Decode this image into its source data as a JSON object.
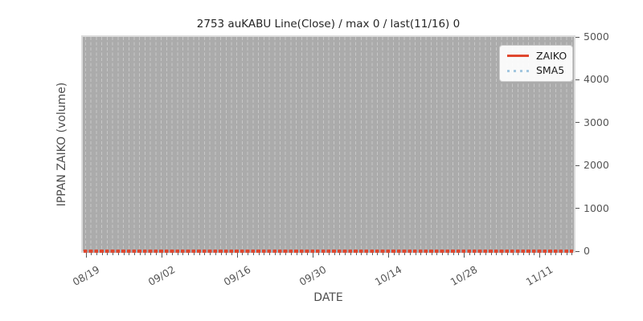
{
  "chart_data": {
    "type": "line",
    "title": "2753 auKABU Line(Close) / max 0 / last(11/16) 0",
    "xlabel": "DATE",
    "ylabel": "IPPAN ZAIKO (volume)",
    "x_tick_labels": [
      "08/19",
      "09/02",
      "09/16",
      "09/30",
      "10/14",
      "10/28",
      "11/11"
    ],
    "x_major_tick_interval_days": 14,
    "x_minor_tick_interval_days": 1,
    "y_tick_labels": [
      "0",
      "1000",
      "2000",
      "3000",
      "4000",
      "5000"
    ],
    "ylim": [
      0,
      5000
    ],
    "y_ticks_side": "right",
    "grid": "vertical-dashed-daily",
    "legend_position": "upper-right",
    "series": [
      {
        "name": "ZAIKO",
        "color": "#e0472e",
        "line_style": "solid",
        "constant_value": 0
      },
      {
        "name": "SMA5",
        "color": "#a3c7e0",
        "line_style": "dotted",
        "constant_value": 0
      }
    ],
    "stats": {
      "max": 0,
      "last_date": "11/16",
      "last_value": 0
    }
  },
  "colors": {
    "plot_background": "#ababab",
    "grid_line": "#c7c7c7",
    "plot_border": "#dcdcdc",
    "tick_text": "#555555",
    "title_text": "#262626",
    "legend_border": "#cccccc"
  }
}
